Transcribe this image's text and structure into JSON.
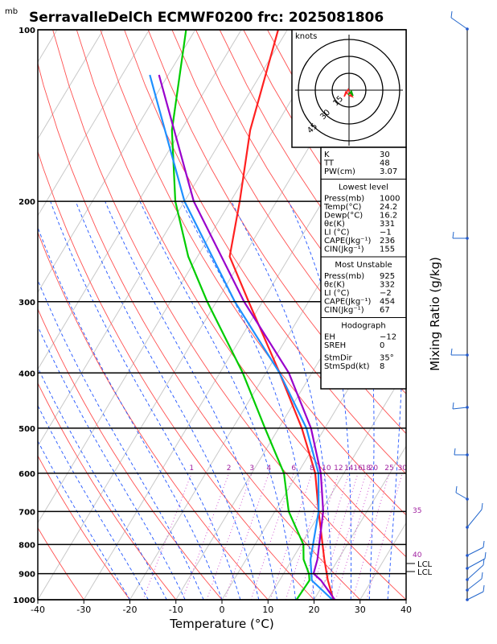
{
  "title": "SerravalleDelCh ECMWF0200 frc: 2025081806",
  "unit_mb": "mb",
  "xlabel": "Temperature (°C)",
  "side_label": "Mixing Ratio (g/kg)",
  "hodo_units": "knots",
  "hodo_rings": [
    "15",
    "30",
    "45"
  ],
  "lcl_labels": [
    "LCL",
    "LCL"
  ],
  "chart_data": {
    "type": "line",
    "title": "SerravalleDelCh ECMWF0200 frc: 2025081806",
    "xlabel": "Temperature (°C)",
    "ylabel": "",
    "xlim": [
      -40,
      40
    ],
    "ylim": [
      1000,
      100
    ],
    "y_scale": "log",
    "x_ticks": [
      "-40",
      "-30",
      "-20",
      "-10",
      "0",
      "10",
      "20",
      "30",
      "40"
    ],
    "y_ticks": [
      "100",
      "200",
      "300",
      "400",
      "500",
      "600",
      "700",
      "800",
      "900",
      "1000"
    ],
    "mixing_ratio_labels": [
      "1",
      "2",
      "3",
      "4",
      "6",
      "8",
      "10",
      "12",
      "14",
      "16",
      "18",
      "20",
      "25",
      "30"
    ],
    "isotherm_labels": [
      "35",
      "40"
    ],
    "series": [
      {
        "color": "#ff2020",
        "p": [
          1000,
          925,
          850,
          700,
          600,
          500,
          400,
          300,
          250,
          200,
          150,
          100
        ],
        "values": [
          24.2,
          20.5,
          17,
          9.5,
          3.8,
          -5,
          -17,
          -33,
          -43,
          -48,
          -55,
          -62
        ]
      },
      {
        "color": "#00cc00",
        "p": [
          1000,
          925,
          900,
          850,
          800,
          700,
          600,
          500,
          400,
          300,
          250,
          200,
          150,
          100
        ],
        "values": [
          16.2,
          16.5,
          15.5,
          12.5,
          10.5,
          3,
          -3,
          -13,
          -25,
          -42,
          -52,
          -62,
          -72,
          -82
        ]
      },
      {
        "color": "#9900cc",
        "p": [
          1000,
          925,
          900,
          850,
          700,
          600,
          500,
          400,
          300,
          200,
          120
        ],
        "values": [
          24.5,
          19,
          16.5,
          15.5,
          10.5,
          5,
          -3,
          -15,
          -34,
          -58,
          -82
        ]
      },
      {
        "color": "#1e90ff",
        "p": [
          1000,
          925,
          850,
          700,
          600,
          500,
          400,
          300,
          200,
          120
        ],
        "values": [
          24,
          17,
          14,
          9.5,
          4.5,
          -4,
          -17,
          -36,
          -60,
          -84
        ]
      }
    ],
    "lcl_pressures": [
      880,
      900
    ]
  },
  "indices": [
    {
      "k": "K",
      "v": "30"
    },
    {
      "k": "TT",
      "v": "48"
    },
    {
      "k": "PW(cm)",
      "v": "3.07"
    }
  ],
  "lowest_level": {
    "header": "Lowest level",
    "rows": [
      {
        "k": "Press(mb)",
        "v": "1000"
      },
      {
        "k": "Temp(°C)",
        "v": "24.2"
      },
      {
        "k": "Dewp(°C)",
        "v": "16.2"
      },
      {
        "k": "θε(K)",
        "v": "331"
      },
      {
        "k": "LI (°C)",
        "v": "−1"
      },
      {
        "k": "CAPE(Jkg⁻¹)",
        "v": "236"
      },
      {
        "k": "CIN(Jkg⁻¹)",
        "v": "155"
      }
    ]
  },
  "most_unstable": {
    "header": "Most Unstable",
    "rows": [
      {
        "k": "Press(mb)",
        "v": "925"
      },
      {
        "k": "θε(K)",
        "v": "332"
      },
      {
        "k": "LI (°C)",
        "v": "−2"
      },
      {
        "k": "CAPE(Jkg⁻¹)",
        "v": "454"
      },
      {
        "k": "CIN(Jkg⁻¹)",
        "v": "67"
      }
    ]
  },
  "hodograph": {
    "header": "Hodograph",
    "rows": [
      {
        "k": "EH",
        "v": "−12"
      },
      {
        "k": "SREH",
        "v": "0"
      },
      {
        "k": "StmDir",
        "v": "35°"
      },
      {
        "k": "StmSpd(kt)",
        "v": "8"
      }
    ]
  }
}
